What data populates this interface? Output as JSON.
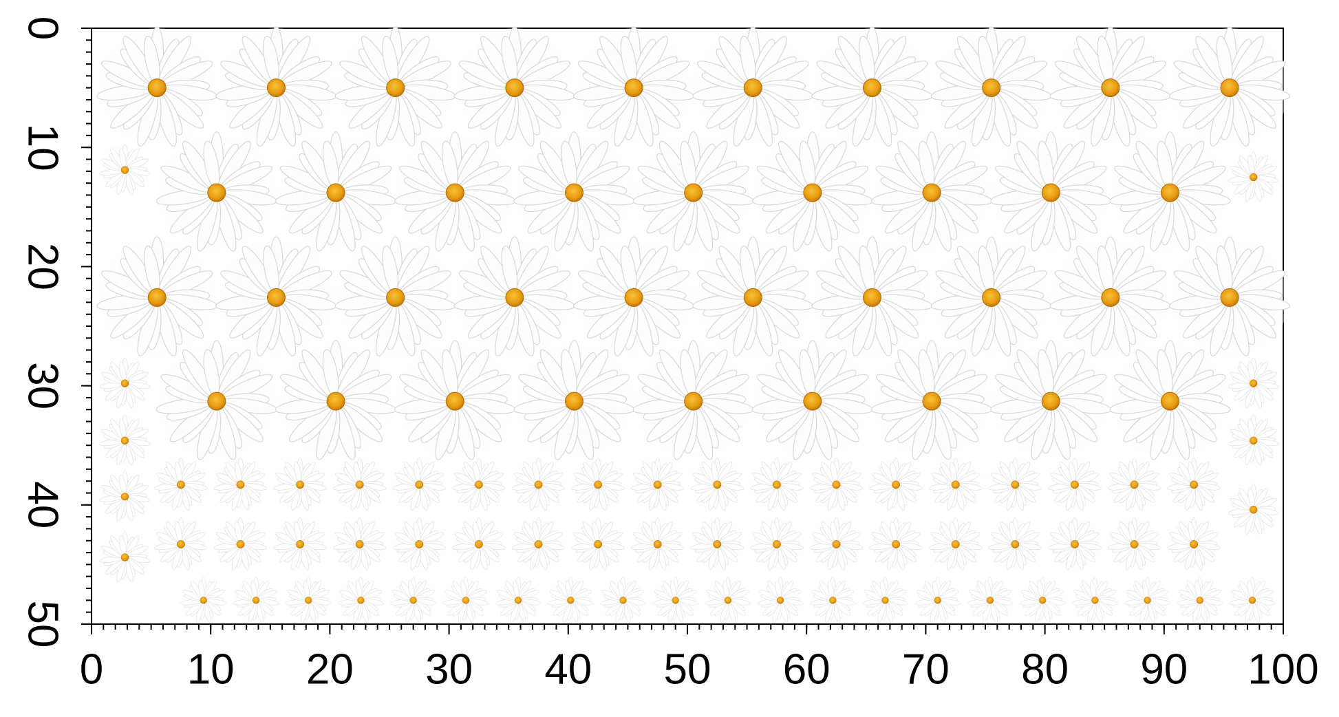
{
  "x_axis": {
    "ticks": [
      0,
      10,
      20,
      30,
      40,
      50,
      60,
      70,
      80,
      90,
      100
    ]
  },
  "y_axis": {
    "ticks": [
      0,
      10,
      20,
      30,
      40,
      50
    ]
  }
}
